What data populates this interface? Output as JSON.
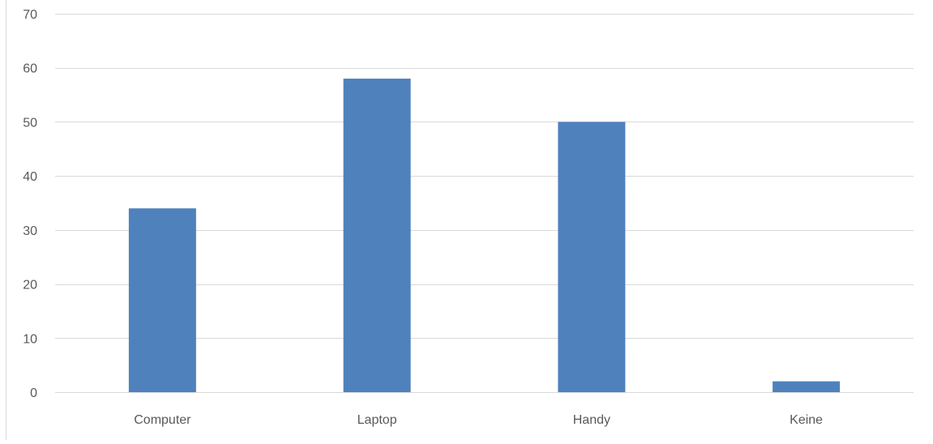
{
  "chart_data": {
    "type": "bar",
    "categories": [
      "Computer",
      "Laptop",
      "Handy",
      "Keine"
    ],
    "values": [
      34,
      58,
      50,
      2
    ],
    "title": "",
    "xlabel": "",
    "ylabel": "",
    "ylim": [
      0,
      70
    ],
    "yticks": [
      0,
      10,
      20,
      30,
      40,
      50,
      60,
      70
    ],
    "grid": true,
    "legend": "none",
    "colors": {
      "bar": "#4f81bd",
      "grid": "#d9d9d9",
      "tick_text": "#595959"
    }
  }
}
